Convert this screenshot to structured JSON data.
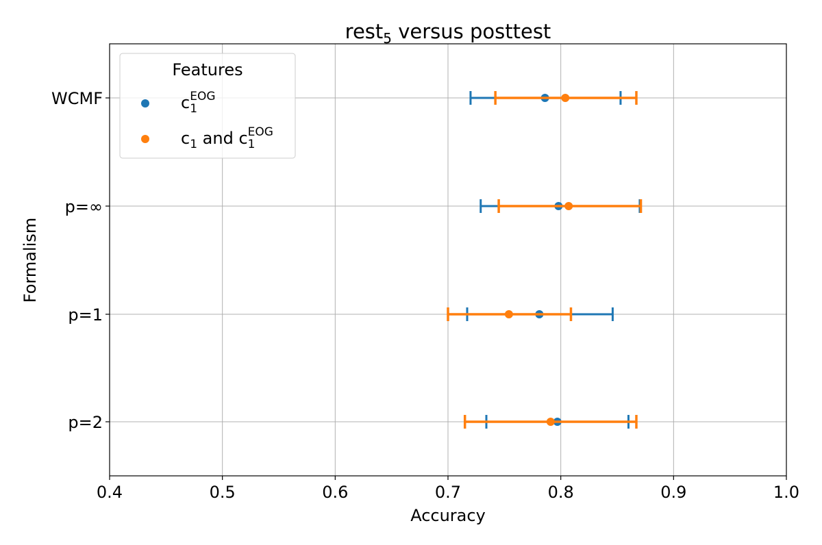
{
  "chart_data": {
    "type": "scatter",
    "orientation": "horizontal",
    "title": {
      "main": "rest",
      "sub": "5",
      "rest": " versus posttest"
    },
    "xlabel": "Accuracy",
    "ylabel": "Formalism",
    "xlim": [
      0.4,
      1.0
    ],
    "xticks": [
      "0.4",
      "0.5",
      "0.6",
      "0.7",
      "0.8",
      "0.9",
      "1.0"
    ],
    "categories": [
      "WCMF",
      "p=∞",
      "p=1",
      "p=2"
    ],
    "grid": true,
    "legend": {
      "title": "Features",
      "placement": "upper-left",
      "entries": [
        {
          "base": "c",
          "sub": "1",
          "sup": "EOG",
          "prefix": ""
        },
        {
          "base": "c",
          "sub": "1",
          "sup": "EOG",
          "prefix": "c",
          "prefix_sub": "1",
          "joiner": " and "
        }
      ]
    },
    "colors": {
      "series1": "#1f77b4",
      "series2": "#ff7f0e",
      "grid": "#b0b0b0"
    },
    "series": [
      {
        "color": "#1f77b4",
        "points": [
          {
            "category": "WCMF",
            "value": 0.786,
            "low": 0.72,
            "high": 0.853
          },
          {
            "category": "p=∞",
            "value": 0.798,
            "low": 0.729,
            "high": 0.87
          },
          {
            "category": "p=1",
            "value": 0.781,
            "low": 0.717,
            "high": 0.846
          },
          {
            "category": "p=2",
            "value": 0.797,
            "low": 0.734,
            "high": 0.86
          }
        ]
      },
      {
        "color": "#ff7f0e",
        "points": [
          {
            "category": "WCMF",
            "value": 0.804,
            "low": 0.742,
            "high": 0.867
          },
          {
            "category": "p=∞",
            "value": 0.807,
            "low": 0.745,
            "high": 0.871
          },
          {
            "category": "p=1",
            "value": 0.754,
            "low": 0.7,
            "high": 0.809
          },
          {
            "category": "p=2",
            "value": 0.791,
            "low": 0.715,
            "high": 0.867
          }
        ]
      }
    ]
  }
}
